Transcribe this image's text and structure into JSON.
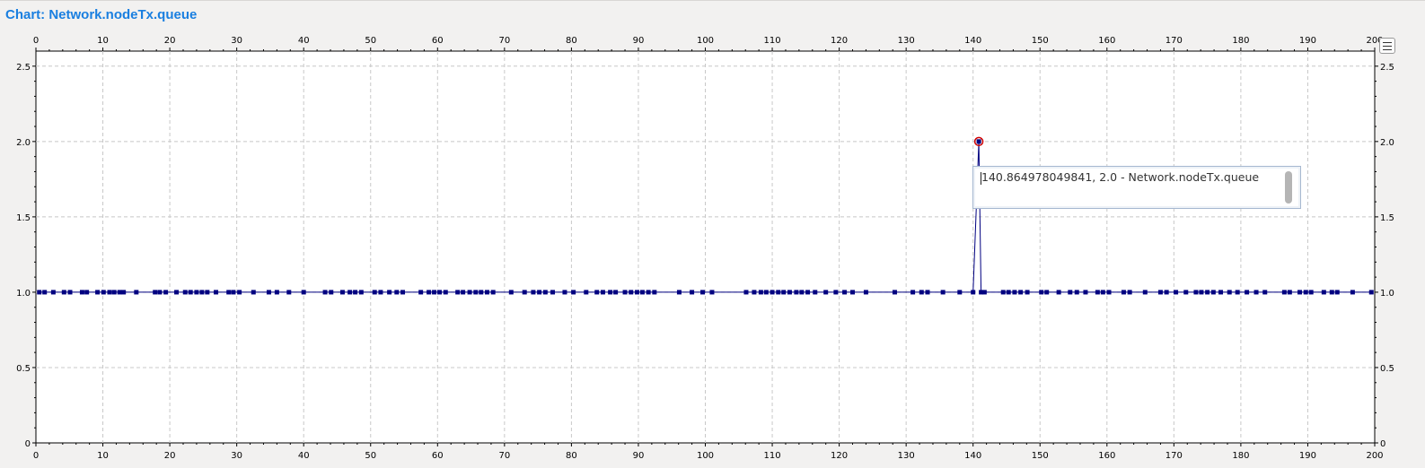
{
  "header": {
    "title": "Chart:  Network.nodeTx.queue"
  },
  "tooltip": {
    "text": "140.864978049841, 2.0 - Network.nodeTx.queue"
  },
  "legend_button": {
    "icon": "list-icon"
  },
  "colors": {
    "title": "#1a7fe0",
    "series": "#000080",
    "highlight": "#d00000",
    "grid": "#c8c8c8"
  },
  "chart_data": {
    "type": "line",
    "title": "",
    "xlabel": "",
    "ylabel": "",
    "xlim": [
      0,
      200
    ],
    "ylim": [
      0,
      2.6
    ],
    "x_ticks": [
      0,
      10,
      20,
      30,
      40,
      50,
      60,
      70,
      80,
      90,
      100,
      110,
      120,
      130,
      140,
      150,
      160,
      170,
      180,
      190,
      200
    ],
    "y_ticks": [
      0,
      0.5,
      1.0,
      1.5,
      2.0,
      2.5
    ],
    "x_tick_labels": [
      "0",
      "10",
      "20",
      "30",
      "40",
      "50",
      "60",
      "70",
      "80",
      "90",
      "100",
      "110",
      "120",
      "130",
      "140",
      "150",
      "160",
      "170",
      "180",
      "190",
      "200"
    ],
    "y_tick_labels": [
      "0",
      "0.5",
      "1.0",
      "1.5",
      "2.0",
      "2.5"
    ],
    "grid": true,
    "series": [
      {
        "name": "Network.nodeTx.queue",
        "points": [
          [
            0.5,
            1
          ],
          [
            1.3,
            1
          ],
          [
            2.6,
            1
          ],
          [
            4.2,
            1
          ],
          [
            5.1,
            1
          ],
          [
            6.9,
            1
          ],
          [
            7.6,
            1
          ],
          [
            9.2,
            1
          ],
          [
            10.1,
            1
          ],
          [
            11.0,
            1
          ],
          [
            11.7,
            1
          ],
          [
            12.5,
            1
          ],
          [
            13.1,
            1
          ],
          [
            15.0,
            1
          ],
          [
            17.8,
            1
          ],
          [
            18.5,
            1
          ],
          [
            19.4,
            1
          ],
          [
            21.0,
            1
          ],
          [
            22.3,
            1
          ],
          [
            23.1,
            1
          ],
          [
            24.0,
            1
          ],
          [
            24.8,
            1
          ],
          [
            25.6,
            1
          ],
          [
            26.9,
            1
          ],
          [
            28.8,
            1
          ],
          [
            29.5,
            1
          ],
          [
            30.4,
            1
          ],
          [
            32.5,
            1
          ],
          [
            34.8,
            1
          ],
          [
            36.0,
            1
          ],
          [
            37.8,
            1
          ],
          [
            40.0,
            1
          ],
          [
            43.2,
            1
          ],
          [
            44.1,
            1
          ],
          [
            45.8,
            1
          ],
          [
            46.9,
            1
          ],
          [
            47.7,
            1
          ],
          [
            48.6,
            1
          ],
          [
            50.6,
            1
          ],
          [
            51.5,
            1
          ],
          [
            52.8,
            1
          ],
          [
            53.9,
            1
          ],
          [
            54.8,
            1
          ],
          [
            57.5,
            1
          ],
          [
            58.7,
            1
          ],
          [
            59.5,
            1
          ],
          [
            60.3,
            1
          ],
          [
            61.2,
            1
          ],
          [
            63.0,
            1
          ],
          [
            63.8,
            1
          ],
          [
            64.8,
            1
          ],
          [
            65.7,
            1
          ],
          [
            66.5,
            1
          ],
          [
            67.4,
            1
          ],
          [
            68.3,
            1
          ],
          [
            71.0,
            1
          ],
          [
            73.0,
            1
          ],
          [
            74.3,
            1
          ],
          [
            75.2,
            1
          ],
          [
            76.1,
            1
          ],
          [
            77.2,
            1
          ],
          [
            79.0,
            1
          ],
          [
            80.3,
            1
          ],
          [
            82.2,
            1
          ],
          [
            83.8,
            1
          ],
          [
            84.7,
            1
          ],
          [
            85.8,
            1
          ],
          [
            86.6,
            1
          ],
          [
            88.0,
            1
          ],
          [
            88.9,
            1
          ],
          [
            89.8,
            1
          ],
          [
            90.6,
            1
          ],
          [
            91.5,
            1
          ],
          [
            92.4,
            1
          ],
          [
            96.1,
            1
          ],
          [
            98.0,
            1
          ],
          [
            99.6,
            1
          ],
          [
            101.0,
            1
          ],
          [
            106.1,
            1
          ],
          [
            107.3,
            1
          ],
          [
            108.3,
            1
          ],
          [
            109.1,
            1
          ],
          [
            110.0,
            1
          ],
          [
            110.9,
            1
          ],
          [
            111.7,
            1
          ],
          [
            112.6,
            1
          ],
          [
            113.6,
            1
          ],
          [
            114.4,
            1
          ],
          [
            115.3,
            1
          ],
          [
            116.4,
            1
          ],
          [
            118.0,
            1
          ],
          [
            119.5,
            1
          ],
          [
            120.8,
            1
          ],
          [
            122.0,
            1
          ],
          [
            124.0,
            1
          ],
          [
            128.3,
            1
          ],
          [
            131.0,
            1
          ],
          [
            132.3,
            1
          ],
          [
            133.2,
            1
          ],
          [
            135.5,
            1
          ],
          [
            138.0,
            1
          ],
          [
            140.0,
            1
          ],
          [
            140.86,
            2.0
          ],
          [
            141.2,
            1
          ],
          [
            141.7,
            1
          ],
          [
            144.5,
            1
          ],
          [
            145.3,
            1
          ],
          [
            146.2,
            1
          ],
          [
            147.1,
            1
          ],
          [
            148.1,
            1
          ],
          [
            150.2,
            1
          ],
          [
            151.0,
            1
          ],
          [
            152.8,
            1
          ],
          [
            154.5,
            1
          ],
          [
            155.5,
            1
          ],
          [
            156.8,
            1
          ],
          [
            158.6,
            1
          ],
          [
            159.4,
            1
          ],
          [
            160.3,
            1
          ],
          [
            162.5,
            1
          ],
          [
            163.4,
            1
          ],
          [
            165.7,
            1
          ],
          [
            168.0,
            1
          ],
          [
            168.9,
            1
          ],
          [
            170.3,
            1
          ],
          [
            171.8,
            1
          ],
          [
            173.3,
            1
          ],
          [
            174.1,
            1
          ],
          [
            175.0,
            1
          ],
          [
            175.9,
            1
          ],
          [
            177.0,
            1
          ],
          [
            178.3,
            1
          ],
          [
            179.5,
            1
          ],
          [
            180.9,
            1
          ],
          [
            182.3,
            1
          ],
          [
            183.6,
            1
          ],
          [
            186.5,
            1
          ],
          [
            187.3,
            1
          ],
          [
            188.8,
            1
          ],
          [
            189.7,
            1
          ],
          [
            190.5,
            1
          ],
          [
            192.4,
            1
          ],
          [
            193.6,
            1
          ],
          [
            194.4,
            1
          ],
          [
            196.7,
            1
          ],
          [
            199.5,
            1
          ]
        ]
      }
    ],
    "highlighted_point": [
      140.86,
      2.0
    ]
  }
}
